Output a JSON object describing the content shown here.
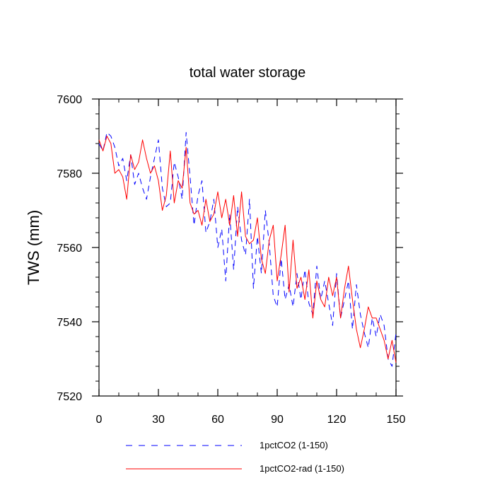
{
  "chart_data": {
    "type": "line",
    "title": "total water storage",
    "xlabel": "",
    "ylabel": "TWS  (mm)",
    "xlim": [
      0,
      150
    ],
    "ylim": [
      7520,
      7600
    ],
    "xticks": [
      0,
      30,
      60,
      90,
      120,
      150
    ],
    "yticks": [
      7520,
      7540,
      7560,
      7580,
      7600
    ],
    "xtick_labels": [
      "0",
      "30",
      "60",
      "90",
      "120",
      "150"
    ],
    "ytick_labels": [
      "7520",
      "7540",
      "7560",
      "7580",
      "7600"
    ],
    "grid": false,
    "legend_position": "bottom",
    "series": [
      {
        "name": "1pctCO2 (1-150)",
        "color": "#0000ff",
        "dash": "dashed",
        "x": [
          0,
          2,
          4,
          6,
          8,
          10,
          12,
          14,
          16,
          18,
          20,
          22,
          24,
          26,
          28,
          30,
          32,
          34,
          36,
          38,
          40,
          42,
          44,
          46,
          48,
          50,
          52,
          54,
          56,
          58,
          60,
          62,
          64,
          66,
          68,
          70,
          72,
          74,
          76,
          78,
          80,
          82,
          84,
          86,
          88,
          90,
          92,
          94,
          96,
          98,
          100,
          102,
          104,
          106,
          108,
          110,
          112,
          114,
          116,
          118,
          120,
          122,
          124,
          126,
          128,
          130,
          132,
          134,
          136,
          138,
          140,
          142,
          144,
          146,
          148,
          150
        ],
        "y": [
          7588,
          7586,
          7591,
          7590,
          7587,
          7582,
          7584,
          7578,
          7585,
          7577,
          7580,
          7576,
          7573,
          7579,
          7584,
          7589,
          7576,
          7571,
          7572,
          7583,
          7579,
          7573,
          7591,
          7579,
          7566,
          7574,
          7578,
          7564,
          7567,
          7573,
          7560,
          7565,
          7551,
          7569,
          7554,
          7571,
          7562,
          7558,
          7573,
          7549,
          7563,
          7553,
          7570,
          7561,
          7547,
          7544,
          7557,
          7546,
          7550,
          7544,
          7553,
          7546,
          7554,
          7545,
          7542,
          7555,
          7546,
          7551,
          7545,
          7539,
          7553,
          7541,
          7546,
          7551,
          7538,
          7550,
          7542,
          7537,
          7533,
          7541,
          7536,
          7542,
          7539,
          7530,
          7528,
          7537
        ]
      },
      {
        "name": "1pctCO2-rad (1-150)",
        "color": "#ff0000",
        "dash": "solid",
        "x": [
          0,
          2,
          4,
          6,
          8,
          10,
          12,
          14,
          16,
          18,
          20,
          22,
          24,
          26,
          28,
          30,
          32,
          34,
          36,
          38,
          40,
          42,
          44,
          46,
          48,
          50,
          52,
          54,
          56,
          58,
          60,
          62,
          64,
          66,
          68,
          70,
          72,
          74,
          76,
          78,
          80,
          82,
          84,
          86,
          88,
          90,
          92,
          94,
          96,
          98,
          100,
          102,
          104,
          106,
          108,
          110,
          112,
          114,
          116,
          118,
          120,
          122,
          124,
          126,
          128,
          130,
          132,
          134,
          136,
          138,
          140,
          142,
          144,
          146,
          148,
          150
        ],
        "y": [
          7589,
          7586,
          7590,
          7588,
          7580,
          7581,
          7579,
          7573,
          7585,
          7581,
          7583,
          7589,
          7584,
          7580,
          7582,
          7578,
          7570,
          7574,
          7586,
          7572,
          7578,
          7576,
          7587,
          7572,
          7569,
          7570,
          7566,
          7573,
          7567,
          7569,
          7575,
          7568,
          7573,
          7566,
          7574,
          7563,
          7575,
          7563,
          7561,
          7562,
          7568,
          7557,
          7553,
          7562,
          7566,
          7551,
          7558,
          7566,
          7548,
          7562,
          7549,
          7552,
          7546,
          7554,
          7541,
          7551,
          7546,
          7544,
          7552,
          7547,
          7552,
          7541,
          7549,
          7555,
          7546,
          7538,
          7533,
          7538,
          7544,
          7541,
          7541,
          7538,
          7535,
          7530,
          7535,
          7529
        ]
      }
    ]
  }
}
